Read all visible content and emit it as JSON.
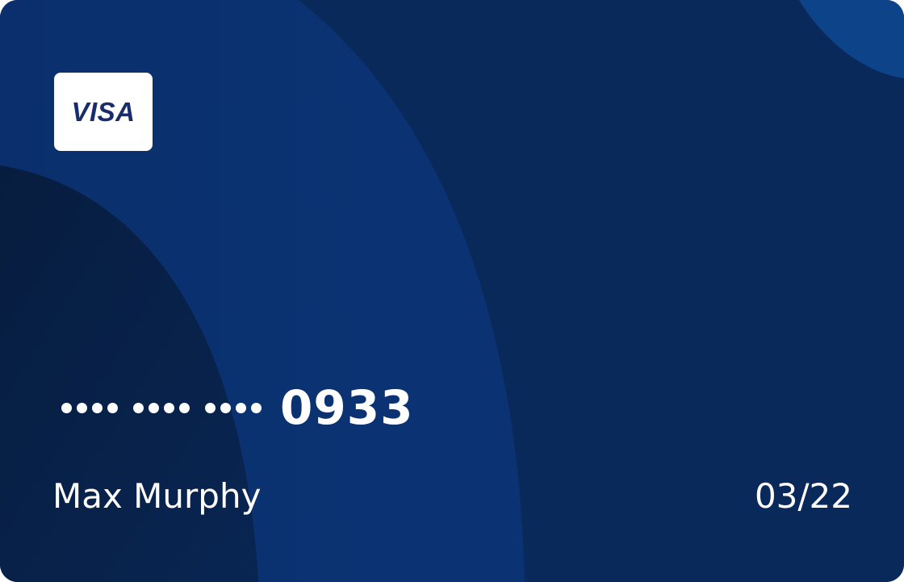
{
  "card": {
    "brand": "VISA",
    "masked_groups": [
      "••••",
      "••••",
      "••••"
    ],
    "last_four": "0933",
    "holder_name": "Max Murphy",
    "expiry": "03/22"
  },
  "colors": {
    "card_base": "#0a3070",
    "card_dark_arc": "#061f45",
    "card_light_arc": "#0d3f80",
    "brand_text": "#1a2d6b",
    "text": "#ffffff"
  }
}
